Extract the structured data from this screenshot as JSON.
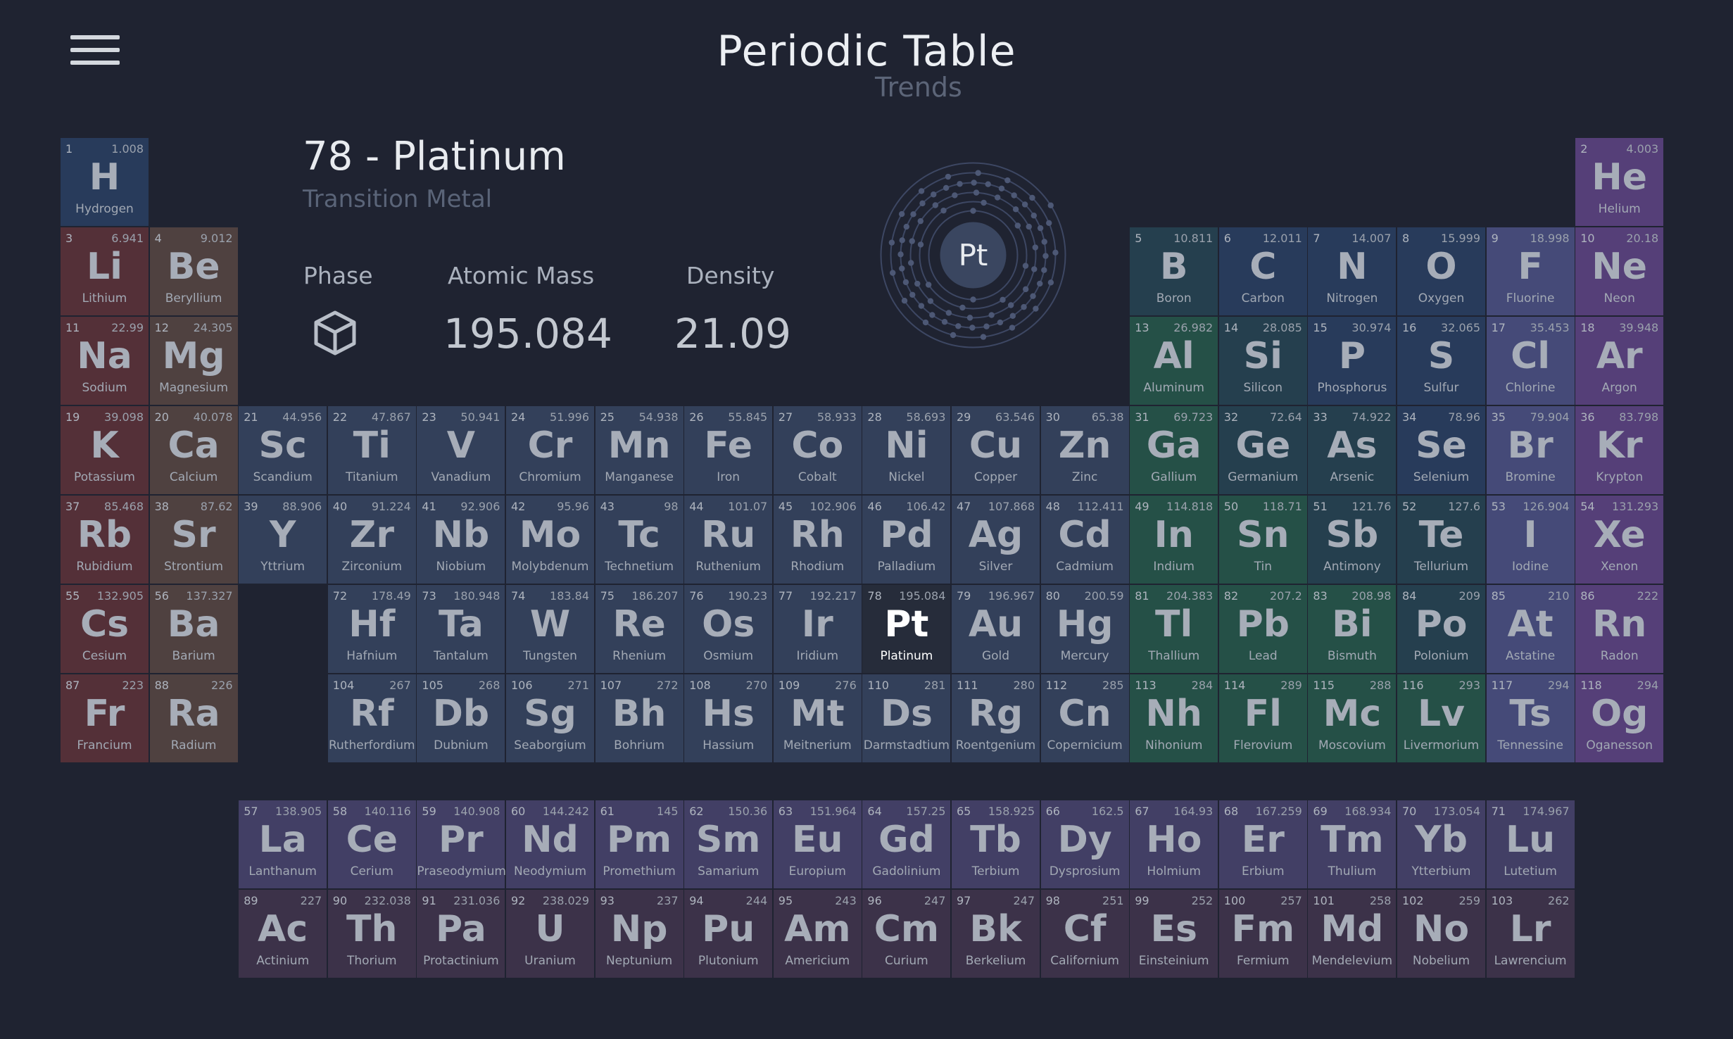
{
  "header": {
    "title": "Periodic Table",
    "subtitle": "Trends",
    "menu_icon": "hamburger-menu-icon"
  },
  "selected": {
    "heading": "78 - Platinum",
    "category": "Transition Metal",
    "symbol": "Pt",
    "phase_label": "Phase",
    "phase_icon": "cube-icon",
    "mass_label": "Atomic Mass",
    "mass_value": "195.084",
    "density_label": "Density",
    "density_value": "21.09",
    "shells": [
      2,
      8,
      18,
      32,
      17,
      1
    ]
  },
  "colors": {
    "background": "#1f2331",
    "nonmetal": "#283b5b",
    "alkali": "#543038",
    "alkaline": "#4f4140",
    "metalloid": "#253f4e",
    "transition": "#33405a",
    "posttransition": "#255047",
    "halogen": "#454a78",
    "noble": "#553f78",
    "lanthanide": "#423f65",
    "actinide": "#3c3249"
  },
  "elements": [
    {
      "n": "1",
      "s": "H",
      "name": "Hydrogen",
      "m": "1.008",
      "c": "nonmetal",
      "r": 1,
      "col": 1
    },
    {
      "n": "2",
      "s": "He",
      "name": "Helium",
      "m": "4.003",
      "c": "noble",
      "r": 1,
      "col": 18
    },
    {
      "n": "3",
      "s": "Li",
      "name": "Lithium",
      "m": "6.941",
      "c": "alkali",
      "r": 2,
      "col": 1
    },
    {
      "n": "4",
      "s": "Be",
      "name": "Beryllium",
      "m": "9.012",
      "c": "alkaline",
      "r": 2,
      "col": 2
    },
    {
      "n": "5",
      "s": "B",
      "name": "Boron",
      "m": "10.811",
      "c": "metalloid",
      "r": 2,
      "col": 13
    },
    {
      "n": "6",
      "s": "C",
      "name": "Carbon",
      "m": "12.011",
      "c": "nonmetal",
      "r": 2,
      "col": 14
    },
    {
      "n": "7",
      "s": "N",
      "name": "Nitrogen",
      "m": "14.007",
      "c": "nonmetal",
      "r": 2,
      "col": 15
    },
    {
      "n": "8",
      "s": "O",
      "name": "Oxygen",
      "m": "15.999",
      "c": "nonmetal",
      "r": 2,
      "col": 16
    },
    {
      "n": "9",
      "s": "F",
      "name": "Fluorine",
      "m": "18.998",
      "c": "halogen",
      "r": 2,
      "col": 17
    },
    {
      "n": "10",
      "s": "Ne",
      "name": "Neon",
      "m": "20.18",
      "c": "noble",
      "r": 2,
      "col": 18
    },
    {
      "n": "11",
      "s": "Na",
      "name": "Sodium",
      "m": "22.99",
      "c": "alkali",
      "r": 3,
      "col": 1
    },
    {
      "n": "12",
      "s": "Mg",
      "name": "Magnesium",
      "m": "24.305",
      "c": "alkaline",
      "r": 3,
      "col": 2
    },
    {
      "n": "13",
      "s": "Al",
      "name": "Aluminum",
      "m": "26.982",
      "c": "posttransition",
      "r": 3,
      "col": 13
    },
    {
      "n": "14",
      "s": "Si",
      "name": "Silicon",
      "m": "28.085",
      "c": "metalloid",
      "r": 3,
      "col": 14
    },
    {
      "n": "15",
      "s": "P",
      "name": "Phosphorus",
      "m": "30.974",
      "c": "nonmetal",
      "r": 3,
      "col": 15
    },
    {
      "n": "16",
      "s": "S",
      "name": "Sulfur",
      "m": "32.065",
      "c": "nonmetal",
      "r": 3,
      "col": 16
    },
    {
      "n": "17",
      "s": "Cl",
      "name": "Chlorine",
      "m": "35.453",
      "c": "halogen",
      "r": 3,
      "col": 17
    },
    {
      "n": "18",
      "s": "Ar",
      "name": "Argon",
      "m": "39.948",
      "c": "noble",
      "r": 3,
      "col": 18
    },
    {
      "n": "19",
      "s": "K",
      "name": "Potassium",
      "m": "39.098",
      "c": "alkali",
      "r": 4,
      "col": 1
    },
    {
      "n": "20",
      "s": "Ca",
      "name": "Calcium",
      "m": "40.078",
      "c": "alkaline",
      "r": 4,
      "col": 2
    },
    {
      "n": "21",
      "s": "Sc",
      "name": "Scandium",
      "m": "44.956",
      "c": "transition",
      "r": 4,
      "col": 3
    },
    {
      "n": "22",
      "s": "Ti",
      "name": "Titanium",
      "m": "47.867",
      "c": "transition",
      "r": 4,
      "col": 4
    },
    {
      "n": "23",
      "s": "V",
      "name": "Vanadium",
      "m": "50.941",
      "c": "transition",
      "r": 4,
      "col": 5
    },
    {
      "n": "24",
      "s": "Cr",
      "name": "Chromium",
      "m": "51.996",
      "c": "transition",
      "r": 4,
      "col": 6
    },
    {
      "n": "25",
      "s": "Mn",
      "name": "Manganese",
      "m": "54.938",
      "c": "transition",
      "r": 4,
      "col": 7
    },
    {
      "n": "26",
      "s": "Fe",
      "name": "Iron",
      "m": "55.845",
      "c": "transition",
      "r": 4,
      "col": 8
    },
    {
      "n": "27",
      "s": "Co",
      "name": "Cobalt",
      "m": "58.933",
      "c": "transition",
      "r": 4,
      "col": 9
    },
    {
      "n": "28",
      "s": "Ni",
      "name": "Nickel",
      "m": "58.693",
      "c": "transition",
      "r": 4,
      "col": 10
    },
    {
      "n": "29",
      "s": "Cu",
      "name": "Copper",
      "m": "63.546",
      "c": "transition",
      "r": 4,
      "col": 11
    },
    {
      "n": "30",
      "s": "Zn",
      "name": "Zinc",
      "m": "65.38",
      "c": "transition",
      "r": 4,
      "col": 12
    },
    {
      "n": "31",
      "s": "Ga",
      "name": "Gallium",
      "m": "69.723",
      "c": "posttransition",
      "r": 4,
      "col": 13
    },
    {
      "n": "32",
      "s": "Ge",
      "name": "Germanium",
      "m": "72.64",
      "c": "metalloid",
      "r": 4,
      "col": 14
    },
    {
      "n": "33",
      "s": "As",
      "name": "Arsenic",
      "m": "74.922",
      "c": "metalloid",
      "r": 4,
      "col": 15
    },
    {
      "n": "34",
      "s": "Se",
      "name": "Selenium",
      "m": "78.96",
      "c": "nonmetal",
      "r": 4,
      "col": 16
    },
    {
      "n": "35",
      "s": "Br",
      "name": "Bromine",
      "m": "79.904",
      "c": "halogen",
      "r": 4,
      "col": 17
    },
    {
      "n": "36",
      "s": "Kr",
      "name": "Krypton",
      "m": "83.798",
      "c": "noble",
      "r": 4,
      "col": 18
    },
    {
      "n": "37",
      "s": "Rb",
      "name": "Rubidium",
      "m": "85.468",
      "c": "alkali",
      "r": 5,
      "col": 1
    },
    {
      "n": "38",
      "s": "Sr",
      "name": "Strontium",
      "m": "87.62",
      "c": "alkaline",
      "r": 5,
      "col": 2
    },
    {
      "n": "39",
      "s": "Y",
      "name": "Yttrium",
      "m": "88.906",
      "c": "transition",
      "r": 5,
      "col": 3
    },
    {
      "n": "40",
      "s": "Zr",
      "name": "Zirconium",
      "m": "91.224",
      "c": "transition",
      "r": 5,
      "col": 4
    },
    {
      "n": "41",
      "s": "Nb",
      "name": "Niobium",
      "m": "92.906",
      "c": "transition",
      "r": 5,
      "col": 5
    },
    {
      "n": "42",
      "s": "Mo",
      "name": "Molybdenum",
      "m": "95.96",
      "c": "transition",
      "r": 5,
      "col": 6
    },
    {
      "n": "43",
      "s": "Tc",
      "name": "Technetium",
      "m": "98",
      "c": "transition",
      "r": 5,
      "col": 7
    },
    {
      "n": "44",
      "s": "Ru",
      "name": "Ruthenium",
      "m": "101.07",
      "c": "transition",
      "r": 5,
      "col": 8
    },
    {
      "n": "45",
      "s": "Rh",
      "name": "Rhodium",
      "m": "102.906",
      "c": "transition",
      "r": 5,
      "col": 9
    },
    {
      "n": "46",
      "s": "Pd",
      "name": "Palladium",
      "m": "106.42",
      "c": "transition",
      "r": 5,
      "col": 10
    },
    {
      "n": "47",
      "s": "Ag",
      "name": "Silver",
      "m": "107.868",
      "c": "transition",
      "r": 5,
      "col": 11
    },
    {
      "n": "48",
      "s": "Cd",
      "name": "Cadmium",
      "m": "112.411",
      "c": "transition",
      "r": 5,
      "col": 12
    },
    {
      "n": "49",
      "s": "In",
      "name": "Indium",
      "m": "114.818",
      "c": "posttransition",
      "r": 5,
      "col": 13
    },
    {
      "n": "50",
      "s": "Sn",
      "name": "Tin",
      "m": "118.71",
      "c": "posttransition",
      "r": 5,
      "col": 14
    },
    {
      "n": "51",
      "s": "Sb",
      "name": "Antimony",
      "m": "121.76",
      "c": "metalloid",
      "r": 5,
      "col": 15
    },
    {
      "n": "52",
      "s": "Te",
      "name": "Tellurium",
      "m": "127.6",
      "c": "metalloid",
      "r": 5,
      "col": 16
    },
    {
      "n": "53",
      "s": "I",
      "name": "Iodine",
      "m": "126.904",
      "c": "halogen",
      "r": 5,
      "col": 17
    },
    {
      "n": "54",
      "s": "Xe",
      "name": "Xenon",
      "m": "131.293",
      "c": "noble",
      "r": 5,
      "col": 18
    },
    {
      "n": "55",
      "s": "Cs",
      "name": "Cesium",
      "m": "132.905",
      "c": "alkali",
      "r": 6,
      "col": 1
    },
    {
      "n": "56",
      "s": "Ba",
      "name": "Barium",
      "m": "137.327",
      "c": "alkaline",
      "r": 6,
      "col": 2
    },
    {
      "n": "72",
      "s": "Hf",
      "name": "Hafnium",
      "m": "178.49",
      "c": "transition",
      "r": 6,
      "col": 4
    },
    {
      "n": "73",
      "s": "Ta",
      "name": "Tantalum",
      "m": "180.948",
      "c": "transition",
      "r": 6,
      "col": 5
    },
    {
      "n": "74",
      "s": "W",
      "name": "Tungsten",
      "m": "183.84",
      "c": "transition",
      "r": 6,
      "col": 6
    },
    {
      "n": "75",
      "s": "Re",
      "name": "Rhenium",
      "m": "186.207",
      "c": "transition",
      "r": 6,
      "col": 7
    },
    {
      "n": "76",
      "s": "Os",
      "name": "Osmium",
      "m": "190.23",
      "c": "transition",
      "r": 6,
      "col": 8
    },
    {
      "n": "77",
      "s": "Ir",
      "name": "Iridium",
      "m": "192.217",
      "c": "transition",
      "r": 6,
      "col": 9
    },
    {
      "n": "78",
      "s": "Pt",
      "name": "Platinum",
      "m": "195.084",
      "c": "transition",
      "r": 6,
      "col": 10,
      "sel": true
    },
    {
      "n": "79",
      "s": "Au",
      "name": "Gold",
      "m": "196.967",
      "c": "transition",
      "r": 6,
      "col": 11
    },
    {
      "n": "80",
      "s": "Hg",
      "name": "Mercury",
      "m": "200.59",
      "c": "transition",
      "r": 6,
      "col": 12
    },
    {
      "n": "81",
      "s": "Tl",
      "name": "Thallium",
      "m": "204.383",
      "c": "posttransition",
      "r": 6,
      "col": 13
    },
    {
      "n": "82",
      "s": "Pb",
      "name": "Lead",
      "m": "207.2",
      "c": "posttransition",
      "r": 6,
      "col": 14
    },
    {
      "n": "83",
      "s": "Bi",
      "name": "Bismuth",
      "m": "208.98",
      "c": "posttransition",
      "r": 6,
      "col": 15
    },
    {
      "n": "84",
      "s": "Po",
      "name": "Polonium",
      "m": "209",
      "c": "metalloid",
      "r": 6,
      "col": 16
    },
    {
      "n": "85",
      "s": "At",
      "name": "Astatine",
      "m": "210",
      "c": "halogen",
      "r": 6,
      "col": 17
    },
    {
      "n": "86",
      "s": "Rn",
      "name": "Radon",
      "m": "222",
      "c": "noble",
      "r": 6,
      "col": 18
    },
    {
      "n": "87",
      "s": "Fr",
      "name": "Francium",
      "m": "223",
      "c": "alkali",
      "r": 7,
      "col": 1
    },
    {
      "n": "88",
      "s": "Ra",
      "name": "Radium",
      "m": "226",
      "c": "alkaline",
      "r": 7,
      "col": 2
    },
    {
      "n": "104",
      "s": "Rf",
      "name": "Rutherfordium",
      "m": "267",
      "c": "transition",
      "r": 7,
      "col": 4
    },
    {
      "n": "105",
      "s": "Db",
      "name": "Dubnium",
      "m": "268",
      "c": "transition",
      "r": 7,
      "col": 5
    },
    {
      "n": "106",
      "s": "Sg",
      "name": "Seaborgium",
      "m": "271",
      "c": "transition",
      "r": 7,
      "col": 6
    },
    {
      "n": "107",
      "s": "Bh",
      "name": "Bohrium",
      "m": "272",
      "c": "transition",
      "r": 7,
      "col": 7
    },
    {
      "n": "108",
      "s": "Hs",
      "name": "Hassium",
      "m": "270",
      "c": "transition",
      "r": 7,
      "col": 8
    },
    {
      "n": "109",
      "s": "Mt",
      "name": "Meitnerium",
      "m": "276",
      "c": "transition",
      "r": 7,
      "col": 9
    },
    {
      "n": "110",
      "s": "Ds",
      "name": "Darmstadtium",
      "m": "281",
      "c": "transition",
      "r": 7,
      "col": 10
    },
    {
      "n": "111",
      "s": "Rg",
      "name": "Roentgenium",
      "m": "280",
      "c": "transition",
      "r": 7,
      "col": 11
    },
    {
      "n": "112",
      "s": "Cn",
      "name": "Copernicium",
      "m": "285",
      "c": "transition",
      "r": 7,
      "col": 12
    },
    {
      "n": "113",
      "s": "Nh",
      "name": "Nihonium",
      "m": "284",
      "c": "posttransition",
      "r": 7,
      "col": 13
    },
    {
      "n": "114",
      "s": "Fl",
      "name": "Flerovium",
      "m": "289",
      "c": "posttransition",
      "r": 7,
      "col": 14
    },
    {
      "n": "115",
      "s": "Mc",
      "name": "Moscovium",
      "m": "288",
      "c": "posttransition",
      "r": 7,
      "col": 15
    },
    {
      "n": "116",
      "s": "Lv",
      "name": "Livermorium",
      "m": "293",
      "c": "posttransition",
      "r": 7,
      "col": 16
    },
    {
      "n": "117",
      "s": "Ts",
      "name": "Tennessine",
      "m": "294",
      "c": "halogen",
      "r": 7,
      "col": 17
    },
    {
      "n": "118",
      "s": "Og",
      "name": "Oganesson",
      "m": "294",
      "c": "noble",
      "r": 7,
      "col": 18
    },
    {
      "n": "57",
      "s": "La",
      "name": "Lanthanum",
      "m": "138.905",
      "c": "lanthanide",
      "r": 8,
      "col": 3
    },
    {
      "n": "58",
      "s": "Ce",
      "name": "Cerium",
      "m": "140.116",
      "c": "lanthanide",
      "r": 8,
      "col": 4
    },
    {
      "n": "59",
      "s": "Pr",
      "name": "Praseodymium",
      "m": "140.908",
      "c": "lanthanide",
      "r": 8,
      "col": 5
    },
    {
      "n": "60",
      "s": "Nd",
      "name": "Neodymium",
      "m": "144.242",
      "c": "lanthanide",
      "r": 8,
      "col": 6
    },
    {
      "n": "61",
      "s": "Pm",
      "name": "Promethium",
      "m": "145",
      "c": "lanthanide",
      "r": 8,
      "col": 7
    },
    {
      "n": "62",
      "s": "Sm",
      "name": "Samarium",
      "m": "150.36",
      "c": "lanthanide",
      "r": 8,
      "col": 8
    },
    {
      "n": "63",
      "s": "Eu",
      "name": "Europium",
      "m": "151.964",
      "c": "lanthanide",
      "r": 8,
      "col": 9
    },
    {
      "n": "64",
      "s": "Gd",
      "name": "Gadolinium",
      "m": "157.25",
      "c": "lanthanide",
      "r": 8,
      "col": 10
    },
    {
      "n": "65",
      "s": "Tb",
      "name": "Terbium",
      "m": "158.925",
      "c": "lanthanide",
      "r": 8,
      "col": 11
    },
    {
      "n": "66",
      "s": "Dy",
      "name": "Dysprosium",
      "m": "162.5",
      "c": "lanthanide",
      "r": 8,
      "col": 12
    },
    {
      "n": "67",
      "s": "Ho",
      "name": "Holmium",
      "m": "164.93",
      "c": "lanthanide",
      "r": 8,
      "col": 13
    },
    {
      "n": "68",
      "s": "Er",
      "name": "Erbium",
      "m": "167.259",
      "c": "lanthanide",
      "r": 8,
      "col": 14
    },
    {
      "n": "69",
      "s": "Tm",
      "name": "Thulium",
      "m": "168.934",
      "c": "lanthanide",
      "r": 8,
      "col": 15
    },
    {
      "n": "70",
      "s": "Yb",
      "name": "Ytterbium",
      "m": "173.054",
      "c": "lanthanide",
      "r": 8,
      "col": 16
    },
    {
      "n": "71",
      "s": "Lu",
      "name": "Lutetium",
      "m": "174.967",
      "c": "lanthanide",
      "r": 8,
      "col": 17
    },
    {
      "n": "89",
      "s": "Ac",
      "name": "Actinium",
      "m": "227",
      "c": "actinide",
      "r": 9,
      "col": 3
    },
    {
      "n": "90",
      "s": "Th",
      "name": "Thorium",
      "m": "232.038",
      "c": "actinide",
      "r": 9,
      "col": 4
    },
    {
      "n": "91",
      "s": "Pa",
      "name": "Protactinium",
      "m": "231.036",
      "c": "actinide",
      "r": 9,
      "col": 5
    },
    {
      "n": "92",
      "s": "U",
      "name": "Uranium",
      "m": "238.029",
      "c": "actinide",
      "r": 9,
      "col": 6
    },
    {
      "n": "93",
      "s": "Np",
      "name": "Neptunium",
      "m": "237",
      "c": "actinide",
      "r": 9,
      "col": 7
    },
    {
      "n": "94",
      "s": "Pu",
      "name": "Plutonium",
      "m": "244",
      "c": "actinide",
      "r": 9,
      "col": 8
    },
    {
      "n": "95",
      "s": "Am",
      "name": "Americium",
      "m": "243",
      "c": "actinide",
      "r": 9,
      "col": 9
    },
    {
      "n": "96",
      "s": "Cm",
      "name": "Curium",
      "m": "247",
      "c": "actinide",
      "r": 9,
      "col": 10
    },
    {
      "n": "97",
      "s": "Bk",
      "name": "Berkelium",
      "m": "247",
      "c": "actinide",
      "r": 9,
      "col": 11
    },
    {
      "n": "98",
      "s": "Cf",
      "name": "Californium",
      "m": "251",
      "c": "actinide",
      "r": 9,
      "col": 12
    },
    {
      "n": "99",
      "s": "Es",
      "name": "Einsteinium",
      "m": "252",
      "c": "actinide",
      "r": 9,
      "col": 13
    },
    {
      "n": "100",
      "s": "Fm",
      "name": "Fermium",
      "m": "257",
      "c": "actinide",
      "r": 9,
      "col": 14
    },
    {
      "n": "101",
      "s": "Md",
      "name": "Mendelevium",
      "m": "258",
      "c": "actinide",
      "r": 9,
      "col": 15
    },
    {
      "n": "102",
      "s": "No",
      "name": "Nobelium",
      "m": "259",
      "c": "actinide",
      "r": 9,
      "col": 16
    },
    {
      "n": "103",
      "s": "Lr",
      "name": "Lawrencium",
      "m": "262",
      "c": "actinide",
      "r": 9,
      "col": 17
    }
  ]
}
